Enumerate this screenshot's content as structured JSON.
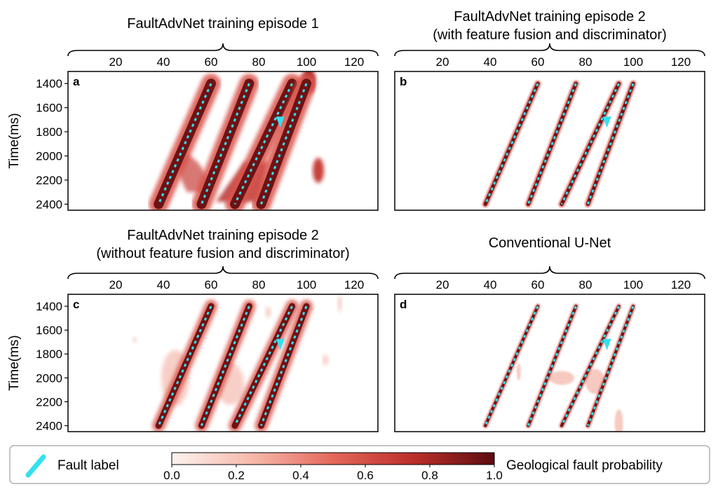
{
  "colors": {
    "fault_probability_dark": "#6e1214",
    "fault_probability_mid": "#c8403a",
    "fault_probability_light": "#fbe3de",
    "fault_label": "#33e0f0",
    "frame": "#000000",
    "legend_border": "#b0b0b0"
  },
  "legend": {
    "fault_label": "Fault label",
    "colorbar_label": "Geological fault probability",
    "colorbar_ticks": [
      "0.0",
      "0.2",
      "0.4",
      "0.6",
      "0.8",
      "1.0"
    ]
  },
  "chart_data": [
    {
      "type": "heatmap",
      "panel": "a",
      "title": [
        "FaultAdvNet training episode 1"
      ],
      "ylabel": "Time(ms)",
      "x_ticks": [
        20,
        40,
        60,
        80,
        100,
        120
      ],
      "y_ticks": [
        1400,
        1600,
        1800,
        2000,
        2200,
        2400
      ],
      "xlim": [
        0,
        130
      ],
      "ylim": [
        1300,
        2450
      ],
      "faults": [
        {
          "top": [
            60,
            1400
          ],
          "bottom": [
            38,
            2400
          ]
        },
        {
          "top": [
            76,
            1400
          ],
          "bottom": [
            56,
            2400
          ]
        },
        {
          "top": [
            94,
            1400
          ],
          "bottom": [
            70,
            2400
          ]
        },
        {
          "top": [
            100,
            1400
          ],
          "bottom": [
            81,
            2400
          ]
        }
      ]
    },
    {
      "type": "heatmap",
      "panel": "b",
      "title": [
        "FaultAdvNet training episode 2",
        "(with feature fusion and discriminator)"
      ],
      "ylabel": "",
      "x_ticks": [
        20,
        40,
        60,
        80,
        100,
        120
      ],
      "y_ticks": [],
      "xlim": [
        0,
        130
      ],
      "ylim": [
        1300,
        2450
      ],
      "faults": [
        {
          "top": [
            60,
            1400
          ],
          "bottom": [
            38,
            2400
          ]
        },
        {
          "top": [
            76,
            1400
          ],
          "bottom": [
            56,
            2400
          ]
        },
        {
          "top": [
            94,
            1400
          ],
          "bottom": [
            70,
            2400
          ]
        },
        {
          "top": [
            100,
            1400
          ],
          "bottom": [
            81,
            2400
          ]
        }
      ]
    },
    {
      "type": "heatmap",
      "panel": "c",
      "title": [
        "FaultAdvNet training episode 2",
        "(without feature fusion and discriminator)"
      ],
      "ylabel": "Time(ms)",
      "x_ticks": [
        20,
        40,
        60,
        80,
        100,
        120
      ],
      "y_ticks": [
        1400,
        1600,
        1800,
        2000,
        2200,
        2400
      ],
      "xlim": [
        0,
        130
      ],
      "ylim": [
        1300,
        2450
      ],
      "faults": [
        {
          "top": [
            60,
            1400
          ],
          "bottom": [
            38,
            2400
          ]
        },
        {
          "top": [
            76,
            1400
          ],
          "bottom": [
            56,
            2400
          ]
        },
        {
          "top": [
            94,
            1400
          ],
          "bottom": [
            70,
            2400
          ]
        },
        {
          "top": [
            100,
            1400
          ],
          "bottom": [
            81,
            2400
          ]
        }
      ]
    },
    {
      "type": "heatmap",
      "panel": "d",
      "title": [
        "Conventional U-Net"
      ],
      "ylabel": "",
      "x_ticks": [
        20,
        40,
        60,
        80,
        100,
        120
      ],
      "y_ticks": [],
      "xlim": [
        0,
        130
      ],
      "ylim": [
        1300,
        2450
      ],
      "faults": [
        {
          "top": [
            60,
            1400
          ],
          "bottom": [
            38,
            2400
          ]
        },
        {
          "top": [
            76,
            1400
          ],
          "bottom": [
            56,
            2400
          ]
        },
        {
          "top": [
            94,
            1400
          ],
          "bottom": [
            70,
            2400
          ]
        },
        {
          "top": [
            100,
            1400
          ],
          "bottom": [
            81,
            2400
          ]
        }
      ]
    }
  ]
}
